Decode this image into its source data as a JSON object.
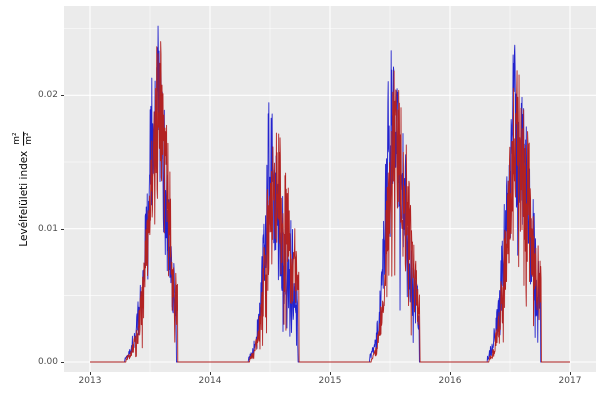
{
  "chart_data": {
    "type": "line",
    "title": "",
    "xlabel": "",
    "ylabel": {
      "text": "Levélfelületi index",
      "frac_numerator": "m²",
      "frac_denominator": "m²"
    },
    "x_tick_labels": [
      "2013",
      "2014",
      "2015",
      "2016",
      "2017"
    ],
    "y_tick_labels": [
      "0.00",
      "0.01",
      "0.02"
    ],
    "x_major": [
      2013,
      2014,
      2015,
      2016,
      2017
    ],
    "x_minor": [
      2013.5,
      2014.5,
      2015.5,
      2016.5
    ],
    "y_major": [
      0,
      0.01,
      0.02
    ],
    "y_minor": [
      0.005,
      0.015,
      0.025
    ],
    "x_range": [
      2012.7833,
      2017.2167
    ],
    "y_range": [
      -0.0007,
      0.0267
    ],
    "grid": {
      "panel_background": "#ebebeb",
      "gridline_color": "#ffffff",
      "tick_color": "#333333",
      "tick_label_color": "#4d4d4d"
    },
    "legend": "none",
    "noise": {
      "seed": 1337,
      "dip_probability": 0.12,
      "samples_per_year": 365
    },
    "series": [
      {
        "name": "lai-series-blue",
        "color": "#2323cd",
        "seasons": {
          "2013": {
            "envelope": [
              [
                0.29,
                0.0002,
                0.0001
              ],
              [
                0.33,
                0.0007,
                0.0004
              ],
              [
                0.38,
                0.002,
                0.001
              ],
              [
                0.43,
                0.005,
                0.002
              ],
              [
                0.47,
                0.01,
                0.003
              ],
              [
                0.5,
                0.016,
                0.004
              ],
              [
                0.53,
                0.019,
                0.005
              ],
              [
                0.57,
                0.0205,
                0.005
              ],
              [
                0.6,
                0.016,
                0.006
              ],
              [
                0.64,
                0.011,
                0.005
              ],
              [
                0.68,
                0.007,
                0.003
              ],
              [
                0.715,
                0.0045,
                0.002
              ]
            ],
            "drop": 0.72,
            "peak_value": 0.0255
          },
          "2014": {
            "envelope": [
              [
                0.32,
                0.0002,
                0.0001
              ],
              [
                0.36,
                0.0008,
                0.0004
              ],
              [
                0.41,
                0.003,
                0.0012
              ],
              [
                0.45,
                0.008,
                0.003
              ],
              [
                0.49,
                0.0148,
                0.0052
              ],
              [
                0.53,
                0.013,
                0.005
              ],
              [
                0.58,
                0.01,
                0.005
              ],
              [
                0.63,
                0.0085,
                0.0045
              ],
              [
                0.68,
                0.007,
                0.004
              ],
              [
                0.72,
                0.005,
                0.002
              ]
            ],
            "drop": 0.733,
            "peak_value": 0.0203
          },
          "2015": {
            "envelope": [
              [
                0.33,
                0.0003,
                0.0002
              ],
              [
                0.37,
                0.001,
                0.0005
              ],
              [
                0.42,
                0.004,
                0.0018
              ],
              [
                0.46,
                0.01,
                0.004
              ],
              [
                0.5,
                0.0198,
                0.0055
              ],
              [
                0.54,
                0.017,
                0.005
              ],
              [
                0.58,
                0.0145,
                0.0055
              ],
              [
                0.63,
                0.011,
                0.005
              ],
              [
                0.68,
                0.0065,
                0.003
              ],
              [
                0.73,
                0.004,
                0.0018
              ]
            ],
            "drop": 0.744,
            "peak_value": 0.0254
          },
          "2016": {
            "envelope": [
              [
                0.31,
                0.0003,
                0.0002
              ],
              [
                0.35,
                0.001,
                0.0005
              ],
              [
                0.4,
                0.003,
                0.0015
              ],
              [
                0.45,
                0.008,
                0.0035
              ],
              [
                0.5,
                0.016,
                0.005
              ],
              [
                0.53,
                0.019,
                0.0055
              ],
              [
                0.57,
                0.0155,
                0.006
              ],
              [
                0.62,
                0.013,
                0.006
              ],
              [
                0.66,
                0.0115,
                0.005
              ],
              [
                0.7,
                0.008,
                0.004
              ],
              [
                0.745,
                0.005,
                0.002
              ]
            ],
            "drop": 0.754,
            "peak_value": 0.0245
          }
        }
      },
      {
        "name": "lai-series-red",
        "color": "#b22222",
        "seasons": {
          "2013": {
            "envelope": [
              [
                0.3,
                0.0002,
                0.0001
              ],
              [
                0.34,
                0.0006,
                0.0003
              ],
              [
                0.39,
                0.0018,
                0.0009
              ],
              [
                0.44,
                0.0045,
                0.002
              ],
              [
                0.48,
                0.009,
                0.003
              ],
              [
                0.52,
                0.015,
                0.004
              ],
              [
                0.55,
                0.0185,
                0.005
              ],
              [
                0.585,
                0.02,
                0.005
              ],
              [
                0.62,
                0.015,
                0.006
              ],
              [
                0.66,
                0.0105,
                0.005
              ],
              [
                0.7,
                0.0065,
                0.003
              ],
              [
                0.725,
                0.0045,
                0.002
              ]
            ],
            "drop": 0.729,
            "peak_value": 0.0252
          },
          "2014": {
            "envelope": [
              [
                0.33,
                0.0002,
                0.0001
              ],
              [
                0.37,
                0.0007,
                0.0004
              ],
              [
                0.42,
                0.0028,
                0.0012
              ],
              [
                0.46,
                0.0075,
                0.003
              ],
              [
                0.51,
                0.013,
                0.005
              ],
              [
                0.55,
                0.0145,
                0.0052
              ],
              [
                0.6,
                0.0105,
                0.005
              ],
              [
                0.65,
                0.009,
                0.0045
              ],
              [
                0.7,
                0.0075,
                0.004
              ],
              [
                0.73,
                0.005,
                0.002
              ]
            ],
            "drop": 0.742,
            "peak_value": 0.0198
          },
          "2015": {
            "envelope": [
              [
                0.345,
                0.0002,
                0.0001
              ],
              [
                0.385,
                0.0008,
                0.0004
              ],
              [
                0.43,
                0.0035,
                0.0016
              ],
              [
                0.47,
                0.009,
                0.0038
              ],
              [
                0.52,
                0.016,
                0.005
              ],
              [
                0.56,
                0.0182,
                0.0054
              ],
              [
                0.6,
                0.0142,
                0.0056
              ],
              [
                0.65,
                0.0105,
                0.005
              ],
              [
                0.7,
                0.006,
                0.0028
              ],
              [
                0.74,
                0.004,
                0.0018
              ]
            ],
            "drop": 0.75,
            "peak_value": 0.0237
          },
          "2016": {
            "envelope": [
              [
                0.325,
                0.0002,
                0.0001
              ],
              [
                0.365,
                0.0008,
                0.0004
              ],
              [
                0.41,
                0.0028,
                0.0014
              ],
              [
                0.46,
                0.0075,
                0.0034
              ],
              [
                0.51,
                0.014,
                0.005
              ],
              [
                0.55,
                0.0172,
                0.0056
              ],
              [
                0.6,
                0.0148,
                0.006
              ],
              [
                0.645,
                0.0125,
                0.0055
              ],
              [
                0.69,
                0.009,
                0.0045
              ],
              [
                0.745,
                0.0055,
                0.0022
              ]
            ],
            "drop": 0.76,
            "peak_value": 0.0231
          }
        }
      }
    ],
    "data_domain_years": [
      2013.0,
      2017.0
    ]
  }
}
